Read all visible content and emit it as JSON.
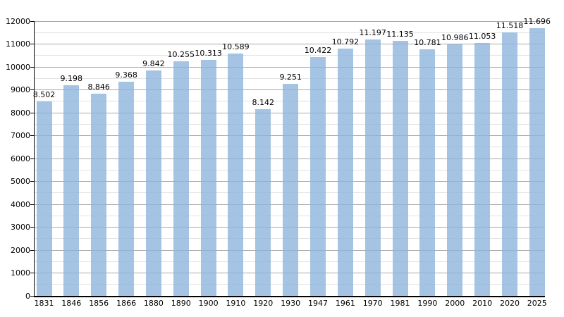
{
  "chart": {
    "background": "#ffffff",
    "bar_color": "#a5c4e3",
    "bar_fill_rgba": "rgba(140,180,219,0.78)",
    "grid_major_color": "#a8a8a8",
    "grid_minor_color": "#e2e2e2",
    "axis_color": "#000000",
    "text_color": "#000000"
  },
  "chart_data": {
    "type": "bar",
    "title": "",
    "xlabel": "",
    "ylabel": "",
    "categories": [
      "1831",
      "1846",
      "1856",
      "1866",
      "1880",
      "1890",
      "1900",
      "1910",
      "1920",
      "1930",
      "1947",
      "1961",
      "1970",
      "1981",
      "1990",
      "2000",
      "2010",
      "2020",
      "2025"
    ],
    "values": [
      8502,
      9198,
      8846,
      9368,
      9842,
      10255,
      10313,
      10589,
      8142,
      9251,
      10422,
      10792,
      11197,
      11135,
      10781,
      10986,
      11053,
      11518,
      11696
    ],
    "value_labels": [
      "8.502",
      "9.198",
      "8.846",
      "9.368",
      "9.842",
      "10.255",
      "10.313",
      "10.589",
      "8.142",
      "9.251",
      "10.422",
      "10.792",
      "11.197",
      "11.135",
      "10.781",
      "10.986",
      "11.053",
      "11.518",
      "11.696"
    ],
    "ylim": [
      0,
      12000
    ],
    "y_major_step": 1000,
    "y_minor_step": 500,
    "y_tick_labels": [
      "0",
      "1000",
      "2000",
      "3000",
      "4000",
      "5000",
      "6000",
      "7000",
      "8000",
      "9000",
      "10000",
      "11000",
      "12000"
    ],
    "grid": true,
    "legend": false
  }
}
